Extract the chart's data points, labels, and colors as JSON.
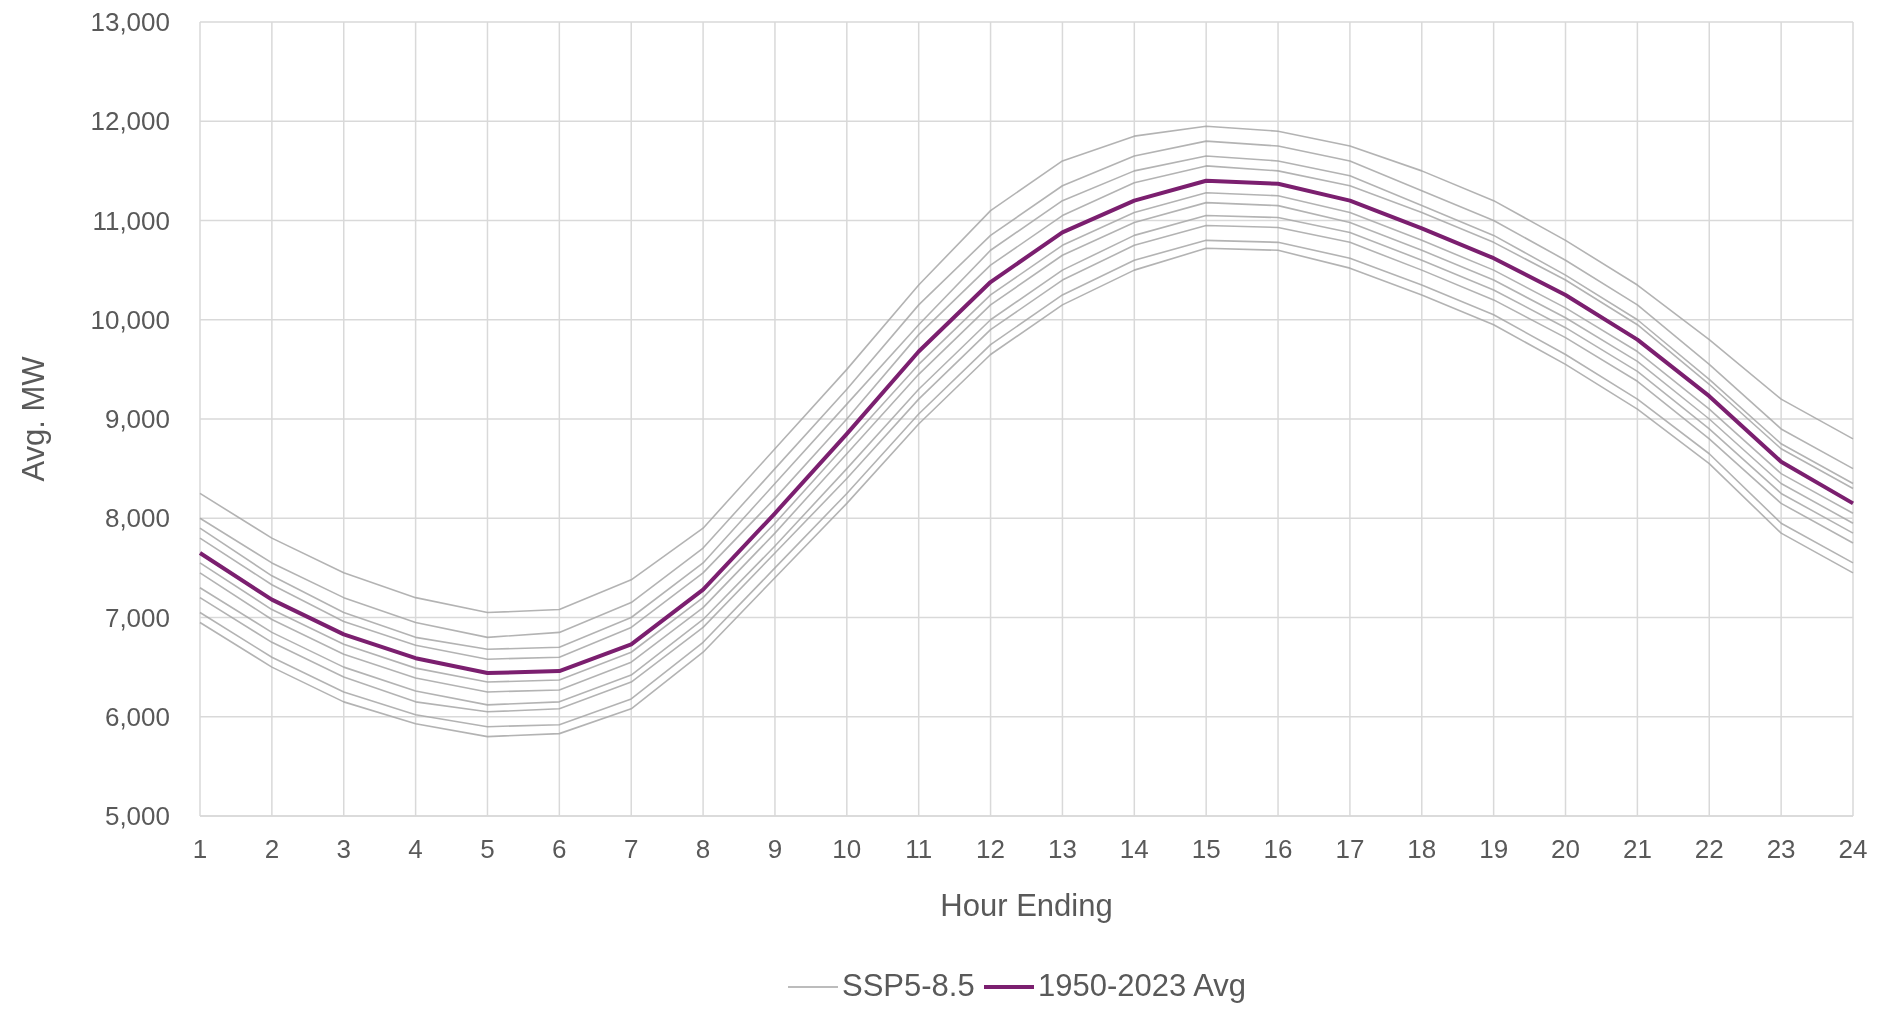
{
  "chart_data": {
    "type": "line",
    "xlabel": "Hour Ending",
    "ylabel": "Avg. MW",
    "x": [
      1,
      2,
      3,
      4,
      5,
      6,
      7,
      8,
      9,
      10,
      11,
      12,
      13,
      14,
      15,
      16,
      17,
      18,
      19,
      20,
      21,
      22,
      23,
      24
    ],
    "xlim": [
      1,
      24
    ],
    "xticks": [
      1,
      2,
      3,
      4,
      5,
      6,
      7,
      8,
      9,
      10,
      11,
      12,
      13,
      14,
      15,
      16,
      17,
      18,
      19,
      20,
      21,
      22,
      23,
      24
    ],
    "ylim": [
      5000,
      13000
    ],
    "yticks": [
      {
        "value": 5000,
        "label": "5,000"
      },
      {
        "value": 6000,
        "label": "6,000"
      },
      {
        "value": 7000,
        "label": "7,000"
      },
      {
        "value": 8000,
        "label": "8,000"
      },
      {
        "value": 9000,
        "label": "9,000"
      },
      {
        "value": 10000,
        "label": "10,000"
      },
      {
        "value": 11000,
        "label": "11,000"
      },
      {
        "value": 12000,
        "label": "12,000"
      },
      {
        "value": 13000,
        "label": "13,000"
      }
    ],
    "grid": true,
    "legend": "bottom",
    "marker": "none",
    "line_style": "solid",
    "series": [
      {
        "name": "SSP5-8.5",
        "color": "#a6a6a6",
        "values": [
          8250,
          7800,
          7450,
          7200,
          7050,
          7080,
          7380,
          7900,
          8700,
          9500,
          10350,
          11100,
          11600,
          11850,
          11950,
          11900,
          11750,
          11500,
          11200,
          10800,
          10350,
          9800,
          9200,
          8800
        ]
      },
      {
        "color": "#a6a6a6",
        "values": [
          6950,
          6500,
          6150,
          5930,
          5800,
          5830,
          6080,
          6650,
          7400,
          8150,
          8950,
          9650,
          10150,
          10500,
          10720,
          10700,
          10520,
          10250,
          9950,
          9550,
          9100,
          8550,
          7850,
          7450
        ]
      },
      {
        "color": "#a6a6a6",
        "values": [
          8000,
          7550,
          7200,
          6950,
          6800,
          6850,
          7150,
          7700,
          8500,
          9300,
          10150,
          10850,
          11350,
          11650,
          11800,
          11750,
          11600,
          11300,
          11000,
          10600,
          10150,
          9550,
          8900,
          8500
        ]
      },
      {
        "color": "#a6a6a6",
        "values": [
          7900,
          7420,
          7050,
          6800,
          6680,
          6700,
          7000,
          7550,
          8350,
          9150,
          9950,
          10700,
          11200,
          11500,
          11650,
          11600,
          11450,
          11150,
          10850,
          10450,
          10000,
          9400,
          8750,
          8350
        ]
      },
      {
        "color": "#a6a6a6",
        "values": [
          7800,
          7330,
          6960,
          6720,
          6580,
          6600,
          6900,
          7450,
          8200,
          9000,
          9850,
          10550,
          11050,
          11380,
          11550,
          11500,
          11350,
          11080,
          10780,
          10400,
          9950,
          9350,
          8700,
          8300
        ]
      },
      {
        "color": "#a6a6a6",
        "values": [
          7550,
          7080,
          6730,
          6490,
          6350,
          6370,
          6650,
          7200,
          7950,
          8750,
          9550,
          10250,
          10750,
          11080,
          11280,
          11250,
          11080,
          10800,
          10500,
          10120,
          9680,
          9100,
          8450,
          8050
        ]
      },
      {
        "color": "#a6a6a6",
        "values": [
          7450,
          6980,
          6630,
          6390,
          6250,
          6270,
          6550,
          7100,
          7850,
          8650,
          9450,
          10150,
          10650,
          10980,
          11180,
          11150,
          10980,
          10700,
          10400,
          10020,
          9580,
          9000,
          8350,
          7950
        ]
      },
      {
        "color": "#a6a6a6",
        "values": [
          7300,
          6850,
          6500,
          6260,
          6120,
          6150,
          6420,
          6980,
          7720,
          8500,
          9300,
          10000,
          10500,
          10850,
          11050,
          11030,
          10880,
          10600,
          10300,
          9920,
          9480,
          8900,
          8250,
          7850
        ]
      },
      {
        "color": "#a6a6a6",
        "values": [
          7200,
          6750,
          6400,
          6150,
          6050,
          6080,
          6350,
          6900,
          7650,
          8400,
          9200,
          9900,
          10400,
          10750,
          10950,
          10930,
          10780,
          10500,
          10200,
          9820,
          9380,
          8800,
          8150,
          7750
        ]
      },
      {
        "color": "#a6a6a6",
        "values": [
          7050,
          6600,
          6250,
          6020,
          5900,
          5920,
          6180,
          6750,
          7500,
          8250,
          9050,
          9750,
          10250,
          10600,
          10800,
          10780,
          10620,
          10350,
          10050,
          9650,
          9200,
          8650,
          7950,
          7550
        ]
      },
      {
        "name": "1950-2023 Avg",
        "color": "#7b1f6f",
        "values": [
          7650,
          7180,
          6830,
          6590,
          6440,
          6460,
          6730,
          7280,
          8050,
          8850,
          9680,
          10380,
          10880,
          11200,
          11400,
          11370,
          11200,
          10920,
          10620,
          10250,
          9800,
          9230,
          8570,
          8150
        ]
      }
    ]
  }
}
